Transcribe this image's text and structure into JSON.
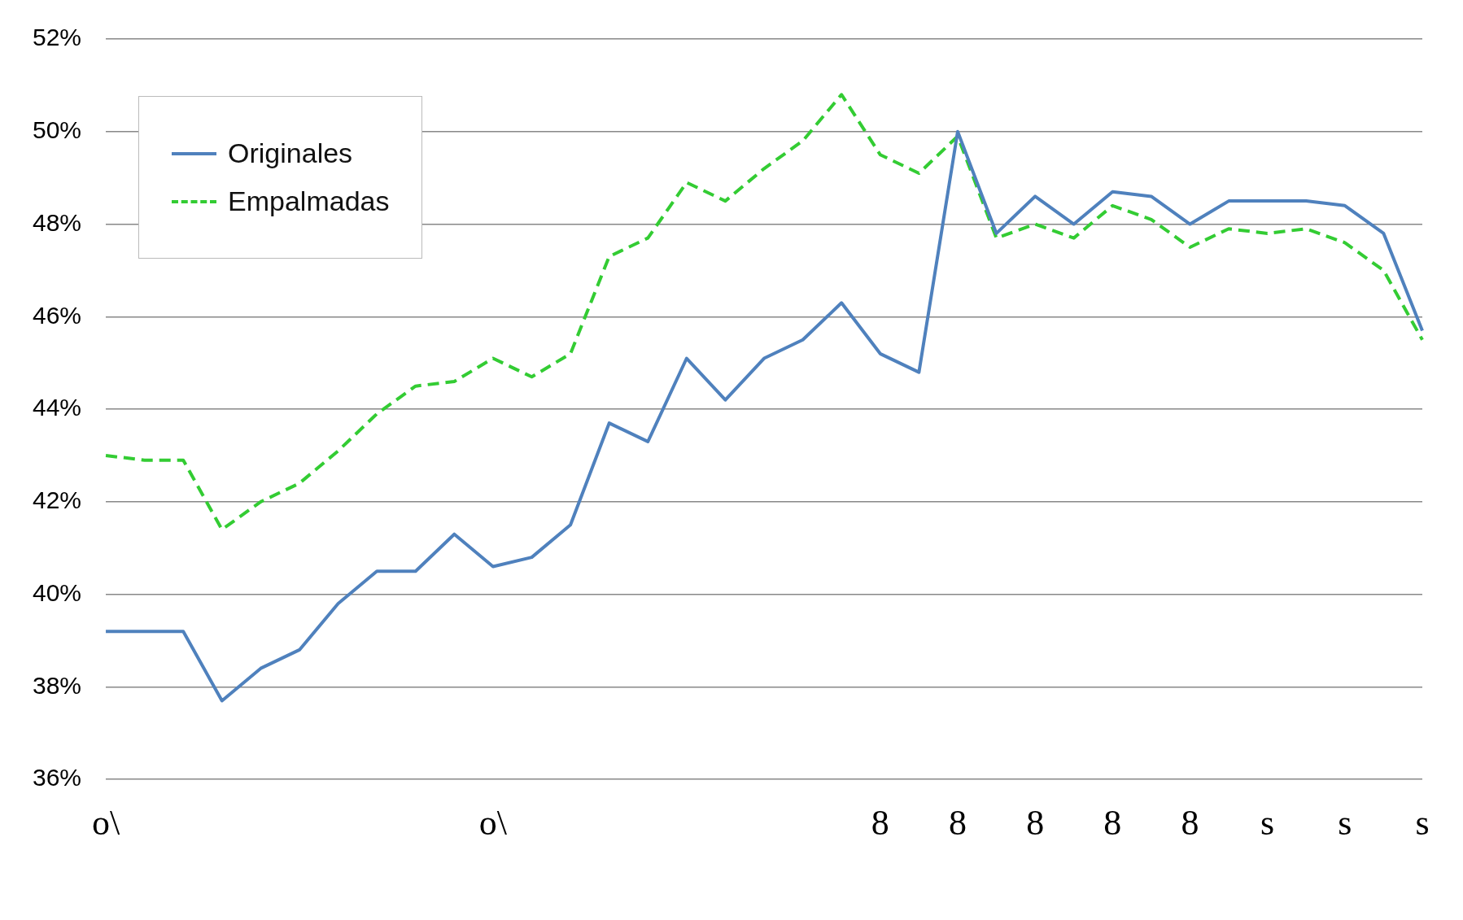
{
  "chart_data": {
    "type": "line",
    "categories": [
      "o\\",
      null,
      null,
      null,
      null,
      null,
      null,
      null,
      null,
      null,
      "o\\",
      null,
      null,
      null,
      null,
      null,
      null,
      null,
      null,
      null,
      "8",
      null,
      "8",
      null,
      "8",
      null,
      "8",
      null,
      "8",
      null,
      "s",
      null,
      "s",
      null,
      "s"
    ],
    "series": [
      {
        "name": "Originales",
        "color": "#4f81bd",
        "line_style": "solid",
        "values": [
          39.2,
          39.2,
          39.2,
          37.7,
          38.4,
          38.8,
          39.8,
          40.5,
          40.5,
          41.3,
          40.6,
          40.8,
          41.5,
          43.7,
          43.3,
          45.1,
          44.2,
          45.1,
          45.5,
          46.3,
          45.2,
          44.8,
          50.0,
          47.8,
          48.6,
          48.0,
          48.7,
          48.6,
          48.0,
          48.5,
          48.5,
          48.5,
          48.4,
          47.8,
          45.7
        ]
      },
      {
        "name": "Empalmadas",
        "color": "#33cc33",
        "line_style": "dashed",
        "values": [
          43.0,
          42.9,
          42.9,
          41.4,
          42.0,
          42.4,
          43.1,
          43.9,
          44.5,
          44.6,
          45.1,
          44.7,
          45.2,
          47.3,
          47.7,
          48.9,
          48.5,
          49.2,
          49.8,
          50.8,
          49.5,
          49.1,
          49.9,
          47.7,
          48.0,
          47.7,
          48.4,
          48.1,
          47.5,
          47.9,
          47.8,
          47.9,
          47.6,
          47.0,
          45.5
        ]
      }
    ],
    "ylim": [
      36,
      52
    ],
    "yticks": [
      {
        "value": 36,
        "label": "36%"
      },
      {
        "value": 38,
        "label": "38%"
      },
      {
        "value": 40,
        "label": "40%"
      },
      {
        "value": 42,
        "label": "42%"
      },
      {
        "value": 44,
        "label": "44%"
      },
      {
        "value": 46,
        "label": "46%"
      },
      {
        "value": 48,
        "label": "48%"
      },
      {
        "value": 50,
        "label": "50%"
      },
      {
        "value": 52,
        "label": "52%"
      }
    ],
    "grid": "y",
    "legend": "top left",
    "marker": "none"
  }
}
